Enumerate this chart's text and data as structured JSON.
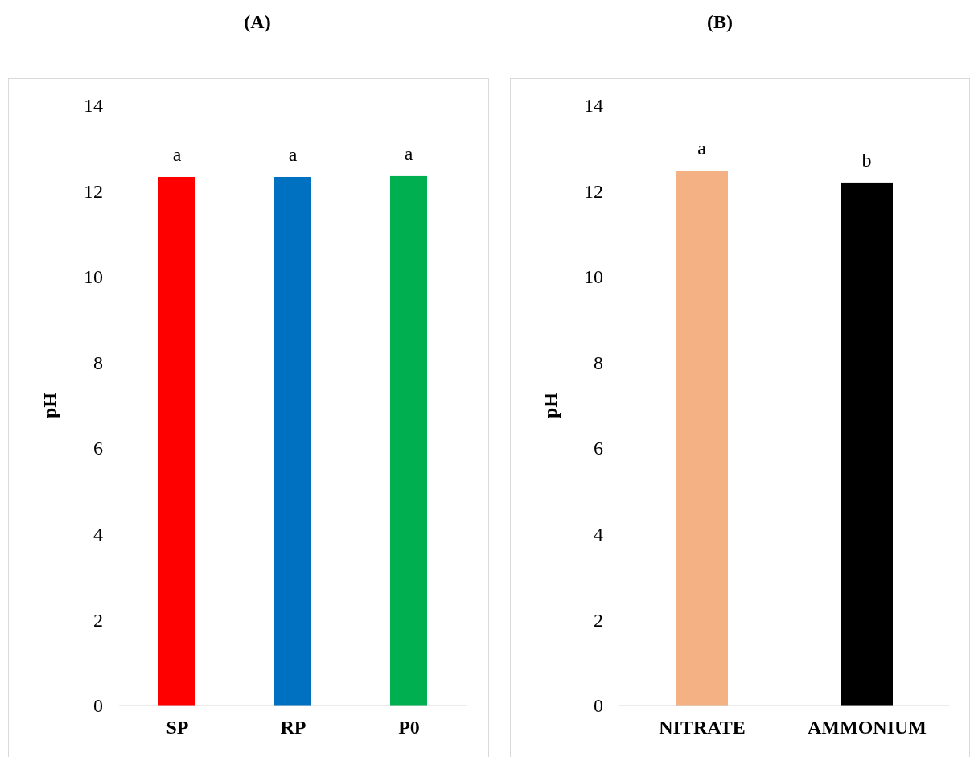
{
  "chart_data": [
    {
      "type": "bar",
      "title": "(A)",
      "ylabel": "pH",
      "categories": [
        "SP",
        "RP",
        "P0"
      ],
      "colors": [
        "#ff0000",
        "#0070c0",
        "#00b050"
      ],
      "values": [
        12.33,
        12.33,
        12.35
      ],
      "ylim": [
        0,
        14
      ],
      "yticks": [
        0,
        2,
        4,
        6,
        8,
        10,
        12,
        14
      ],
      "grid": false,
      "annotations": [
        {
          "text": "a",
          "x": "SP",
          "y": 12.33
        },
        {
          "text": "a",
          "x": "RP",
          "y": 12.33
        },
        {
          "text": "a",
          "x": "P0",
          "y": 12.35
        }
      ]
    },
    {
      "type": "bar",
      "title": "(B)",
      "ylabel": "pH",
      "categories": [
        "NITRATE",
        "AMMONIUM"
      ],
      "colors": [
        "#f4b183",
        "#000000"
      ],
      "values": [
        12.48,
        12.2
      ],
      "ylim": [
        0,
        14
      ],
      "yticks": [
        0,
        2,
        4,
        6,
        8,
        10,
        12,
        14
      ],
      "grid": false,
      "annotations": [
        {
          "text": "a",
          "x": "NITRATE",
          "y": 12.48
        },
        {
          "text": "b",
          "x": "AMMONIUM",
          "y": 12.2
        }
      ]
    }
  ]
}
